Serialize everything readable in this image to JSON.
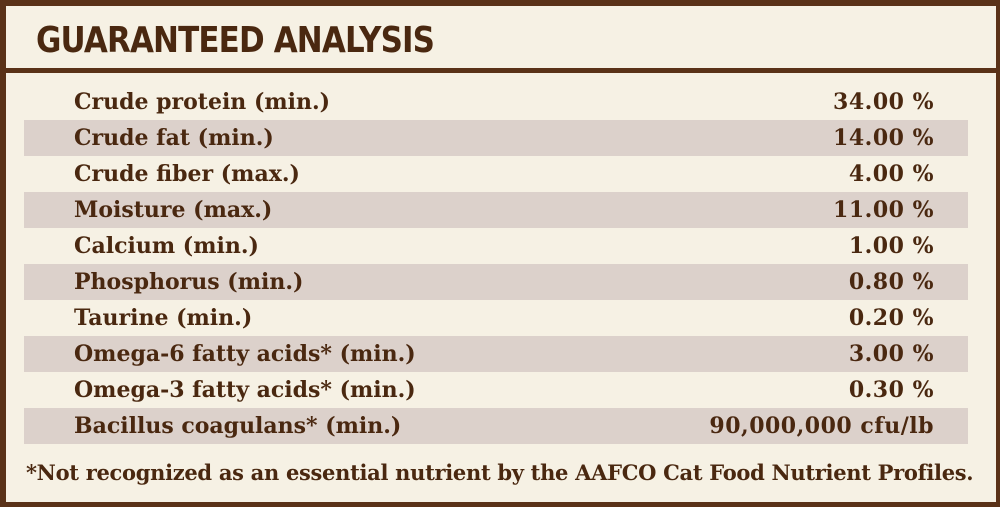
{
  "title": "GUARANTEED ANALYSIS",
  "rows": [
    {
      "label": "Crude protein (min.)",
      "value": "34.00 %"
    },
    {
      "label": "Crude fat (min.)",
      "value": "14.00 %"
    },
    {
      "label": "Crude fiber (max.)",
      "value": "4.00 %"
    },
    {
      "label": "Moisture (max.)",
      "value": "11.00 %"
    },
    {
      "label": "Calcium (min.)",
      "value": "1.00 %"
    },
    {
      "label": "Phosphorus (min.)",
      "value": "0.80 %"
    },
    {
      "label": "Taurine (min.)",
      "value": "0.20 %"
    },
    {
      "label": "Omega-6 fatty acids* (min.)",
      "value": "3.00 %"
    },
    {
      "label": "Omega-3 fatty acids* (min.)",
      "value": "0.30 %"
    },
    {
      "label": "Bacillus coagulans* (min.)",
      "value": "90,000,000 cfu/lb"
    }
  ],
  "footnote": "*Not recognized as an essential nutrient by the AAFCO Cat Food Nutrient Profiles.",
  "colors": {
    "border": "#5a3218",
    "text": "#4a2810",
    "background": "#f6f1e4",
    "row_shade": "#dcd1cb"
  }
}
